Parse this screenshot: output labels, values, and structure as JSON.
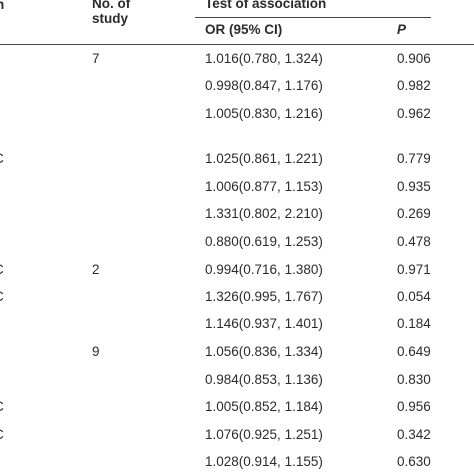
{
  "table": {
    "header": {
      "row_label": "n",
      "study": "No. of\nstudy",
      "group": "Test of association",
      "or": "OR (95% CI)",
      "p": "P"
    },
    "rows": [
      {
        "study": "7",
        "or": "1.016(0.780, 1.324)",
        "p": "0.906"
      },
      {
        "or": "0.998(0.847, 1.176)",
        "p": "0.982"
      },
      {
        "or": "1.005(0.830, 1.216)",
        "p": "0.962"
      },
      {
        "label": "C",
        "or": "1.025(0.861, 1.221)",
        "p": "0.779"
      },
      {
        "or": "1.006(0.877, 1.153)",
        "p": "0.935"
      },
      {
        "or": "1.331(0.802, 2.210)",
        "p": "0.269"
      },
      {
        "or": "0.880(0.619, 1.253)",
        "p": "0.478"
      },
      {
        "label": "C",
        "study": "2",
        "or": "0.994(0.716, 1.380)",
        "p": "0.971"
      },
      {
        "label": "C",
        "or": "1.326(0.995, 1.767)",
        "p": "0.054"
      },
      {
        "or": "1.146(0.937, 1.401)",
        "p": "0.184"
      },
      {
        "study": "9",
        "or": "1.056(0.836, 1.334)",
        "p": "0.649"
      },
      {
        "or": "0.984(0.853, 1.136)",
        "p": "0.830"
      },
      {
        "label": "C",
        "or": "1.005(0.852, 1.184)",
        "p": "0.956"
      },
      {
        "label": "C",
        "or": "1.076(0.925, 1.251)",
        "p": "0.342"
      },
      {
        "or": "1.028(0.914, 1.155)",
        "p": "0.630"
      }
    ]
  }
}
